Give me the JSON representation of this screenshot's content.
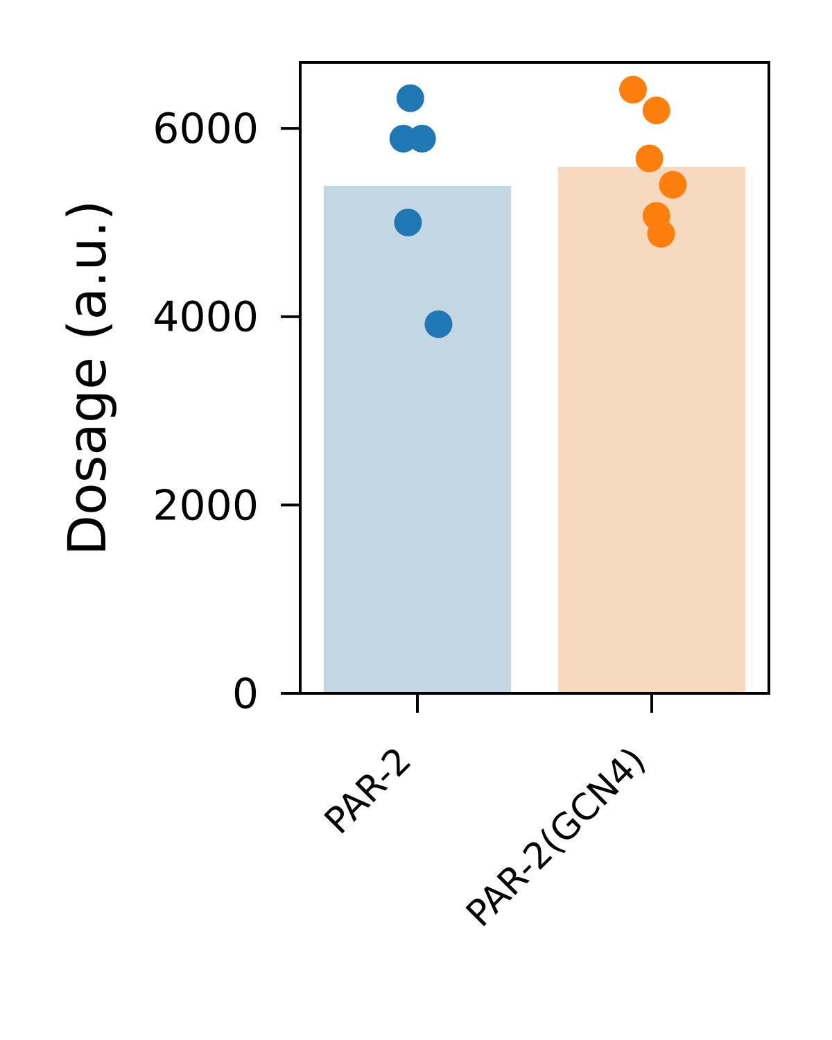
{
  "chart_data": {
    "type": "bar",
    "title": "",
    "xlabel": "",
    "ylabel": "Dosage (a.u.)",
    "ylim": [
      0,
      6700
    ],
    "yticks": [
      0,
      2000,
      4000,
      6000
    ],
    "ytick_labels": [
      "0",
      "2000",
      "4000",
      "6000"
    ],
    "grid": false,
    "categories": [
      "PAR-2",
      "PAR-2(GCN4)"
    ],
    "values": [
      5390,
      5590
    ],
    "colors": {
      "bar_fill": [
        "#c2d6e4",
        "#f7d9bf"
      ],
      "points": [
        "#1f77b4",
        "#ff7f0e"
      ],
      "axes": "#000000"
    },
    "points": [
      {
        "category": "PAR-2",
        "values": [
          6320,
          5890,
          5890,
          5000,
          3920
        ],
        "jitter": [
          -0.03,
          -0.06,
          0.02,
          -0.04,
          0.09
        ]
      },
      {
        "category": "PAR-2(GCN4)",
        "values": [
          6410,
          6190,
          5680,
          5400,
          5070,
          4880
        ],
        "jitter": [
          -0.08,
          0.02,
          -0.01,
          0.09,
          0.02,
          0.04
        ]
      }
    ]
  }
}
